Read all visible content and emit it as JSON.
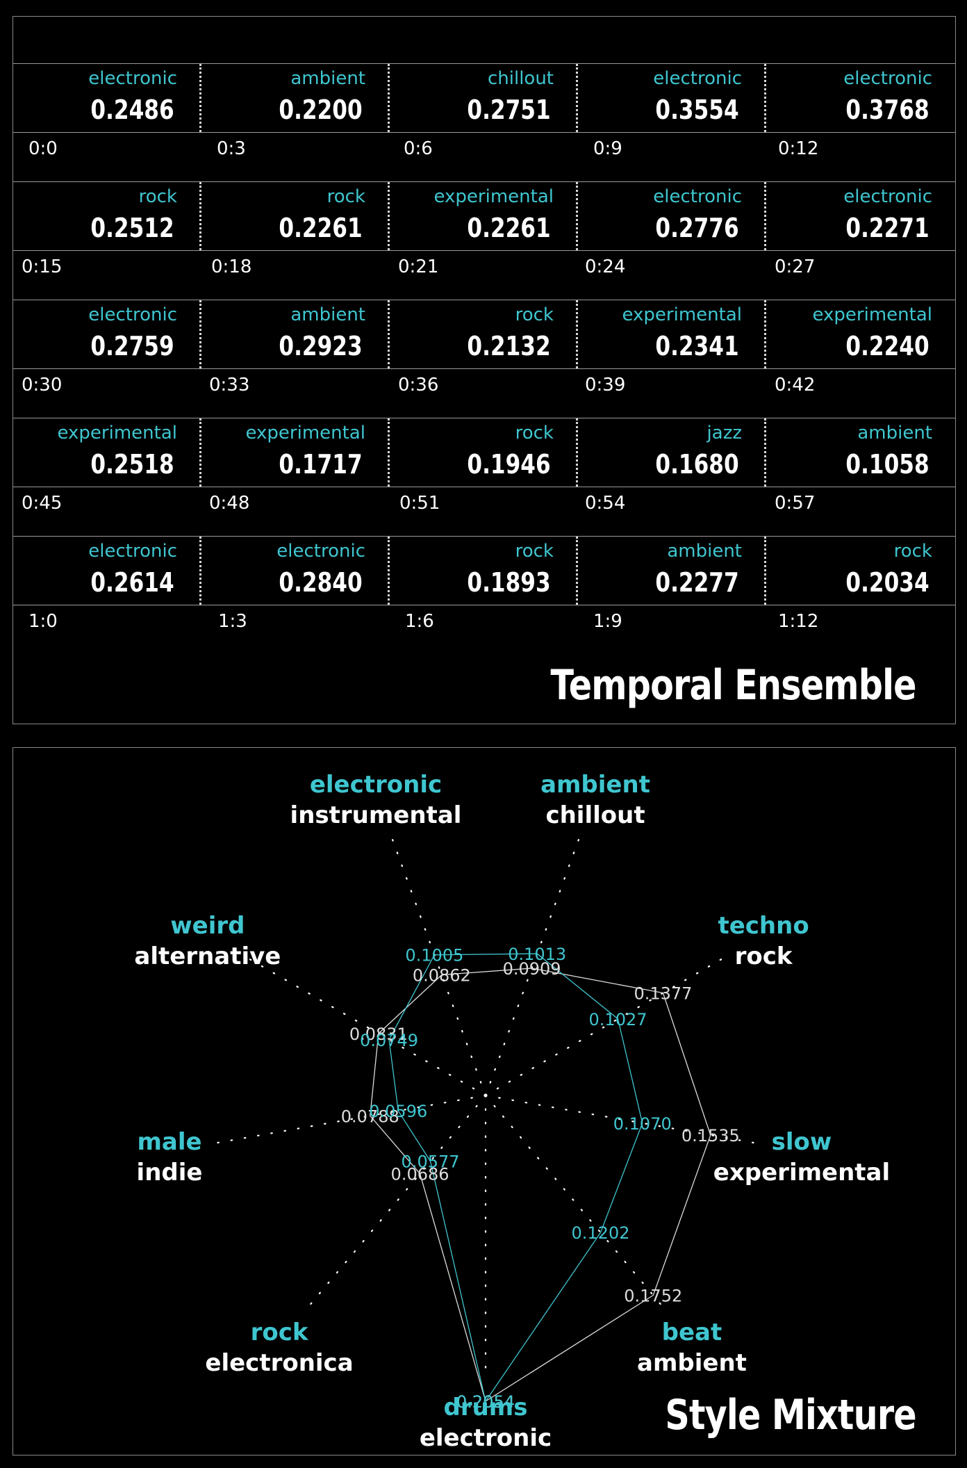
{
  "colors": {
    "background": "#000000",
    "accent": "#3fc6d0",
    "text": "#ffffff",
    "line": "#dddddd"
  },
  "ensemble": {
    "title": "Temporal Ensemble",
    "rows": [
      {
        "cells": [
          {
            "genre": "electronic",
            "score": "0.2486",
            "time": "0:0"
          },
          {
            "genre": "ambient",
            "score": "0.2200",
            "time": "0:3"
          },
          {
            "genre": "chillout",
            "score": "0.2751",
            "time": "0:6"
          },
          {
            "genre": "electronic",
            "score": "0.3554",
            "time": "0:9"
          },
          {
            "genre": "electronic",
            "score": "0.3768",
            "time": "0:12"
          }
        ]
      },
      {
        "cells": [
          {
            "genre": "rock",
            "score": "0.2512",
            "time": "0:15"
          },
          {
            "genre": "rock",
            "score": "0.2261",
            "time": "0:18"
          },
          {
            "genre": "experimental",
            "score": "0.2261",
            "time": "0:21"
          },
          {
            "genre": "electronic",
            "score": "0.2776",
            "time": "0:24"
          },
          {
            "genre": "electronic",
            "score": "0.2271",
            "time": "0:27"
          }
        ]
      },
      {
        "cells": [
          {
            "genre": "electronic",
            "score": "0.2759",
            "time": "0:30"
          },
          {
            "genre": "ambient",
            "score": "0.2923",
            "time": "0:33"
          },
          {
            "genre": "rock",
            "score": "0.2132",
            "time": "0:36"
          },
          {
            "genre": "experimental",
            "score": "0.2341",
            "time": "0:39"
          },
          {
            "genre": "experimental",
            "score": "0.2240",
            "time": "0:42"
          }
        ]
      },
      {
        "cells": [
          {
            "genre": "experimental",
            "score": "0.2518",
            "time": "0:45"
          },
          {
            "genre": "experimental",
            "score": "0.1717",
            "time": "0:48"
          },
          {
            "genre": "rock",
            "score": "0.1946",
            "time": "0:51"
          },
          {
            "genre": "jazz",
            "score": "0.1680",
            "time": "0:54"
          },
          {
            "genre": "ambient",
            "score": "0.1058",
            "time": "0:57"
          }
        ]
      },
      {
        "cells": [
          {
            "genre": "electronic",
            "score": "0.2614",
            "time": "1:0"
          },
          {
            "genre": "electronic",
            "score": "0.2840",
            "time": "1:3"
          },
          {
            "genre": "rock",
            "score": "0.1893",
            "time": "1:6"
          },
          {
            "genre": "ambient",
            "score": "0.2277",
            "time": "1:9"
          },
          {
            "genre": "rock",
            "score": "0.2034",
            "time": "1:12"
          }
        ]
      }
    ]
  },
  "chart_data": {
    "type": "radar",
    "title": "Style Mixture",
    "axes": [
      {
        "top": "drums",
        "bottom": "electronic"
      },
      {
        "top": "beat",
        "bottom": "ambient"
      },
      {
        "top": "slow",
        "bottom": "experimental"
      },
      {
        "top": "techno",
        "bottom": "rock"
      },
      {
        "top": "ambient",
        "bottom": "chillout"
      },
      {
        "top": "electronic",
        "bottom": "instrumental"
      },
      {
        "top": "weird",
        "bottom": "alternative"
      },
      {
        "top": "male",
        "bottom": "indie"
      },
      {
        "top": "rock",
        "bottom": "electronica"
      }
    ],
    "series": [
      {
        "color": "#dddddd",
        "values": [
          0.2054,
          0.1752,
          0.1535,
          0.1377,
          0.0909,
          0.0862,
          0.0831,
          0.0788,
          0.0686
        ]
      },
      {
        "color": "#3fc6d0",
        "values": [
          0.2054,
          0.1202,
          0.107,
          0.1027,
          0.1013,
          0.1005,
          0.0749,
          0.0596,
          0.0577
        ]
      }
    ],
    "max": 0.2054,
    "grid": "dotted-spokes"
  }
}
